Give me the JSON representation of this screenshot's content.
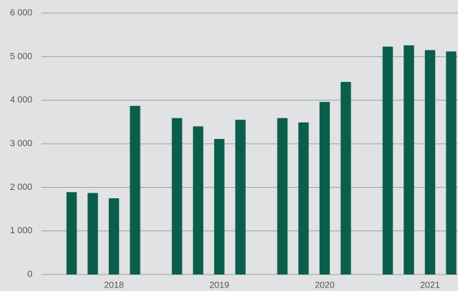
{
  "chart_data": {
    "type": "bar",
    "categories": [
      "2018",
      "2019",
      "2020",
      "2021"
    ],
    "series": [
      {
        "color": "#0b5e4c",
        "values": [
          1890,
          3590,
          3590,
          5230
        ]
      },
      {
        "color": "#0b5e4c",
        "values": [
          1870,
          3400,
          3490,
          5260
        ]
      },
      {
        "color": "#0b5e4c",
        "values": [
          1750,
          3110,
          3960,
          5150
        ]
      },
      {
        "color": "#0b5e4c",
        "values": [
          3870,
          3550,
          4420,
          5120
        ]
      }
    ],
    "ylim": [
      0,
      6000
    ],
    "yticks": [
      0,
      {
        "value": 1000,
        "label": "1 000"
      },
      {
        "value": 2000,
        "label": "2 000"
      },
      {
        "value": 3000,
        "label": "3 000"
      },
      {
        "value": 4000,
        "label": "4 000"
      },
      {
        "value": 5000,
        "label": "5 000"
      },
      {
        "value": 6000,
        "label": "6 000"
      }
    ],
    "grid": true
  }
}
